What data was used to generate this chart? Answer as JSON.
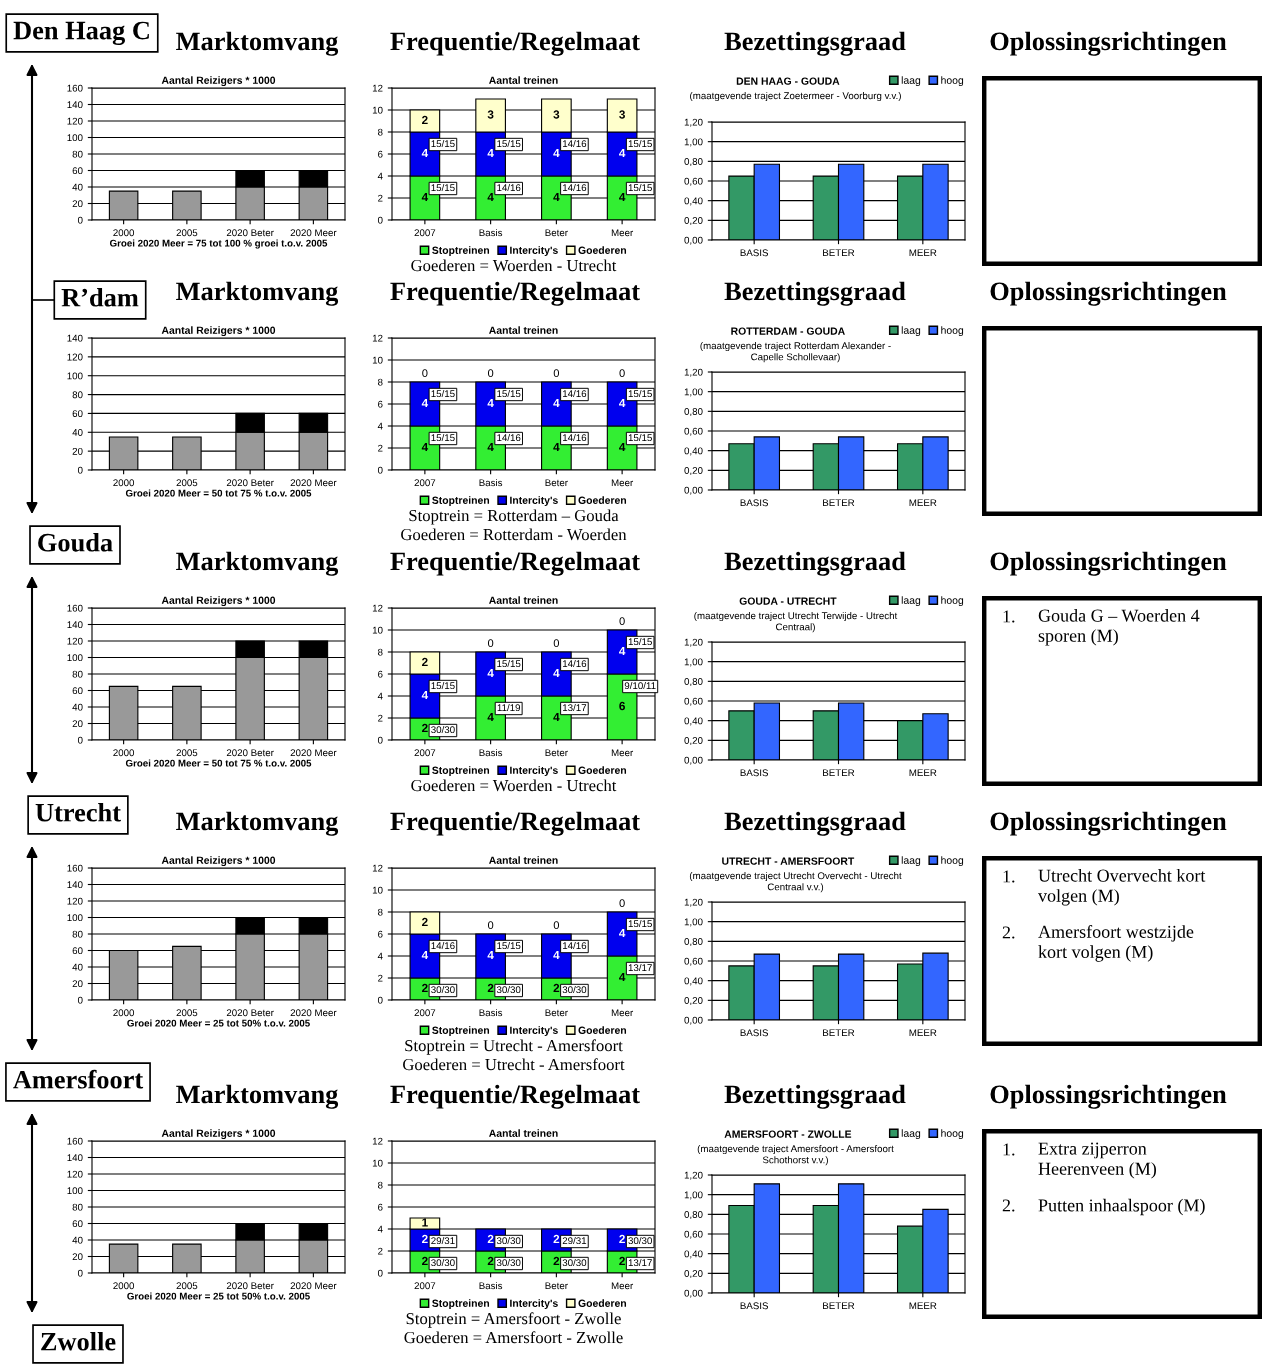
{
  "chart_data": [
    {
      "type": "other",
      "annotations": [
        "Den Haag C",
        "R’dam",
        "Gouda",
        "Utrecht",
        "Amersfoort",
        "Zwolle"
      ]
    },
    {
      "type": "bar",
      "title": "Marktomvang",
      "subtitle": "Aantal Reizigers * 1000",
      "xlabel": "Groei 2020 Meer = 75 tot 100 % groei t.o.v. 2005",
      "stacked": true,
      "categories": [
        "2000",
        "2005",
        "2020 Beter",
        "2020 Meer"
      ],
      "series": [
        {
          "color": "#999999",
          "values": [
            35,
            35,
            40,
            40
          ]
        },
        {
          "color": "#000000",
          "values": [
            null,
            null,
            20,
            20
          ]
        }
      ],
      "ylim": [
        0,
        160
      ],
      "yticks": [
        0,
        20,
        40,
        60,
        80,
        100,
        120,
        140,
        160
      ],
      "grid": "y"
    },
    {
      "type": "bar",
      "title": "Frequentie/Regelmaat",
      "subtitle": "Aantal treinen",
      "stacked": true,
      "categories": [
        "2007",
        "Basis",
        "Beter",
        "Meer"
      ],
      "series": [
        {
          "name": "Stoptreinen",
          "color": "#33ee33",
          "values": [
            4,
            4,
            4,
            4
          ],
          "value_labels": [
            "4",
            "4",
            "4",
            "4"
          ]
        },
        {
          "name": "Intercity's",
          "color": "#0000ee",
          "values": [
            4,
            4,
            4,
            4
          ],
          "value_labels": [
            "4",
            "4",
            "4",
            "4"
          ]
        },
        {
          "name": "Goederen",
          "color": "#ffffcc",
          "values": [
            2,
            3,
            3,
            3
          ],
          "value_labels": [
            "2",
            "3",
            "3",
            "3"
          ]
        }
      ],
      "ylim": [
        0,
        12
      ],
      "yticks": [
        0,
        2,
        4,
        6,
        8,
        10,
        12
      ],
      "grid": "y",
      "legend": "bottom",
      "annotations": [
        {
          "text": "15/15",
          "x": "2007",
          "y": 8
        },
        {
          "text": "15/15",
          "x": "Basis",
          "y": 8
        },
        {
          "text": "14/16",
          "x": "Beter",
          "y": 8
        },
        {
          "text": "15/15",
          "x": "Meer",
          "y": 8
        },
        {
          "text": "15/15",
          "x": "2007",
          "y": 4
        },
        {
          "text": "14/16",
          "x": "Basis",
          "y": 4
        },
        {
          "text": "14/16",
          "x": "Beter",
          "y": 4
        },
        {
          "text": "15/15",
          "x": "Meer",
          "y": 4
        },
        "Goederen = Woerden - Utrecht"
      ]
    },
    {
      "type": "bar",
      "title": "Bezettingsgraad",
      "subtitle": "DEN HAAG - GOUDA",
      "categories": [
        "BASIS",
        "BETER",
        "MEER"
      ],
      "series": [
        {
          "name": "laag",
          "color": "#339966",
          "values": [
            0.65,
            0.65,
            0.65
          ]
        },
        {
          "name": "hoog",
          "color": "#3366ff",
          "values": [
            0.77,
            0.77,
            0.77
          ]
        }
      ],
      "ylim": [
        0,
        1.2
      ],
      "yticks": [
        {
          "value": 0,
          "label": "0,00"
        },
        {
          "value": 0.2,
          "label": "0,20"
        },
        {
          "value": 0.4,
          "label": "0,40"
        },
        {
          "value": 0.6,
          "label": "0,60"
        },
        {
          "value": 0.8,
          "label": "0,80"
        },
        {
          "value": 1.0,
          "label": "1,00"
        },
        {
          "value": 1.2,
          "label": "1,20"
        }
      ],
      "grid": "y",
      "legend": "top right",
      "annotations": [
        "(maatgevende traject Zoetermeer - Voorburg v.v.)"
      ]
    },
    {
      "type": "other",
      "title": "Oplossingsrichtingen"
    },
    {
      "type": "bar",
      "title": "Marktomvang",
      "subtitle": "Aantal Reizigers * 1000",
      "xlabel": "Groei 2020 Meer = 50 tot 75 % t.o.v. 2005",
      "stacked": true,
      "categories": [
        "2000",
        "2005",
        "2020 Beter",
        "2020 Meer"
      ],
      "series": [
        {
          "color": "#999999",
          "values": [
            35,
            35,
            40,
            40
          ]
        },
        {
          "color": "#000000",
          "values": [
            null,
            null,
            20,
            20
          ]
        }
      ],
      "ylim": [
        0,
        140
      ],
      "yticks": [
        0,
        20,
        40,
        60,
        80,
        100,
        120,
        140
      ],
      "grid": "y"
    },
    {
      "type": "bar",
      "title": "Frequentie/Regelmaat",
      "subtitle": "Aantal treinen",
      "stacked": true,
      "categories": [
        "2007",
        "Basis",
        "Beter",
        "Meer"
      ],
      "series": [
        {
          "name": "Stoptreinen",
          "color": "#33ee33",
          "values": [
            4,
            4,
            4,
            4
          ],
          "value_labels": [
            "4",
            "4",
            "4",
            "4"
          ]
        },
        {
          "name": "Intercity's",
          "color": "#0000ee",
          "values": [
            4,
            4,
            4,
            4
          ],
          "value_labels": [
            "4",
            "4",
            "4",
            "4"
          ]
        },
        {
          "name": "Goederen",
          "color": "#ffffcc",
          "values": [
            0,
            0,
            0,
            0
          ],
          "value_labels": [
            "0",
            "0",
            "0",
            "0"
          ]
        }
      ],
      "ylim": [
        0,
        12
      ],
      "yticks": [
        0,
        2,
        4,
        6,
        8,
        10,
        12
      ],
      "grid": "y",
      "legend": "bottom",
      "annotations": [
        {
          "text": "15/15",
          "x": "2007",
          "y": 8
        },
        {
          "text": "15/15",
          "x": "Basis",
          "y": 8
        },
        {
          "text": "14/16",
          "x": "Beter",
          "y": 8
        },
        {
          "text": "15/15",
          "x": "Meer",
          "y": 8
        },
        {
          "text": "15/15",
          "x": "2007",
          "y": 4
        },
        {
          "text": "14/16",
          "x": "Basis",
          "y": 4
        },
        {
          "text": "14/16",
          "x": "Beter",
          "y": 4
        },
        {
          "text": "15/15",
          "x": "Meer",
          "y": 4
        },
        "Stoptrein = Rotterdam – Gouda",
        "Goederen = Rotterdam - Woerden"
      ]
    },
    {
      "type": "bar",
      "title": "Bezettingsgraad",
      "subtitle": "ROTTERDAM - GOUDA",
      "categories": [
        "BASIS",
        "BETER",
        "MEER"
      ],
      "series": [
        {
          "name": "laag",
          "color": "#339966",
          "values": [
            0.47,
            0.47,
            0.47
          ]
        },
        {
          "name": "hoog",
          "color": "#3366ff",
          "values": [
            0.54,
            0.54,
            0.54
          ]
        }
      ],
      "ylim": [
        0,
        1.2
      ],
      "yticks": [
        {
          "value": 0,
          "label": "0,00"
        },
        {
          "value": 0.2,
          "label": "0,20"
        },
        {
          "value": 0.4,
          "label": "0,40"
        },
        {
          "value": 0.6,
          "label": "0,60"
        },
        {
          "value": 0.8,
          "label": "0,80"
        },
        {
          "value": 1.0,
          "label": "1,00"
        },
        {
          "value": 1.2,
          "label": "1,20"
        }
      ],
      "grid": "y",
      "legend": "top right",
      "annotations": [
        "(maatgevende traject Rotterdam Alexander - Capelle Schollevaar)"
      ]
    },
    {
      "type": "other",
      "title": "Oplossingsrichtingen"
    },
    {
      "type": "bar",
      "title": "Marktomvang",
      "subtitle": "Aantal Reizigers * 1000",
      "xlabel": "Groei 2020 Meer = 50 tot 75 % t.o.v. 2005",
      "stacked": true,
      "categories": [
        "2000",
        "2005",
        "2020 Beter",
        "2020 Meer"
      ],
      "series": [
        {
          "color": "#999999",
          "values": [
            65,
            65,
            100,
            100
          ]
        },
        {
          "color": "#000000",
          "values": [
            null,
            null,
            20,
            20
          ]
        }
      ],
      "ylim": [
        0,
        160
      ],
      "yticks": [
        0,
        20,
        40,
        60,
        80,
        100,
        120,
        140,
        160
      ],
      "grid": "y"
    },
    {
      "type": "bar",
      "title": "Frequentie/Regelmaat",
      "subtitle": "Aantal treinen",
      "stacked": true,
      "categories": [
        "2007",
        "Basis",
        "Beter",
        "Meer"
      ],
      "series": [
        {
          "name": "Stoptreinen",
          "color": "#33ee33",
          "values": [
            2,
            4,
            4,
            6
          ],
          "value_labels": [
            "2",
            "4",
            "4",
            "6"
          ]
        },
        {
          "name": "Intercity's",
          "color": "#0000ee",
          "values": [
            4,
            4,
            4,
            4
          ],
          "value_labels": [
            "4",
            "4",
            "4",
            "4"
          ]
        },
        {
          "name": "Goederen",
          "color": "#ffffcc",
          "values": [
            2,
            0,
            0,
            0
          ],
          "value_labels": [
            "2",
            "0",
            "0",
            "0"
          ]
        }
      ],
      "ylim": [
        0,
        12
      ],
      "yticks": [
        0,
        2,
        4,
        6,
        8,
        10,
        12
      ],
      "grid": "y",
      "legend": "bottom",
      "annotations": [
        {
          "text": "15/15",
          "x": "2007",
          "y": 6
        },
        {
          "text": "15/15",
          "x": "Basis",
          "y": 8
        },
        {
          "text": "14/16",
          "x": "Beter",
          "y": 8
        },
        {
          "text": "15/15",
          "x": "Meer",
          "y": 10
        },
        {
          "text": "30/30",
          "x": "2007",
          "y": 2
        },
        {
          "text": "11/19",
          "x": "Basis",
          "y": 4
        },
        {
          "text": "13/17",
          "x": "Beter",
          "y": 4
        },
        {
          "text": "9/10/11",
          "x": "Meer",
          "y": 6
        },
        "Goederen = Woerden - Utrecht"
      ]
    },
    {
      "type": "bar",
      "title": "Bezettingsgraad",
      "subtitle": "GOUDA - UTRECHT",
      "categories": [
        "BASIS",
        "BETER",
        "MEER"
      ],
      "series": [
        {
          "name": "laag",
          "color": "#339966",
          "values": [
            0.5,
            0.5,
            0.4
          ]
        },
        {
          "name": "hoog",
          "color": "#3366ff",
          "values": [
            0.58,
            0.58,
            0.47
          ]
        }
      ],
      "ylim": [
        0,
        1.2
      ],
      "yticks": [
        {
          "value": 0,
          "label": "0,00"
        },
        {
          "value": 0.2,
          "label": "0,20"
        },
        {
          "value": 0.4,
          "label": "0,40"
        },
        {
          "value": 0.6,
          "label": "0,60"
        },
        {
          "value": 0.8,
          "label": "0,80"
        },
        {
          "value": 1.0,
          "label": "1,00"
        },
        {
          "value": 1.2,
          "label": "1,20"
        }
      ],
      "grid": "y",
      "legend": "top right",
      "annotations": [
        "(maatgevende traject Utrecht Terwijde - Utrecht Centraal)"
      ]
    },
    {
      "type": "other",
      "title": "Oplossingsrichtingen",
      "annotations": [
        "1. Gouda G – Woerden 4 sporen (M)"
      ]
    },
    {
      "type": "bar",
      "title": "Marktomvang",
      "subtitle": "Aantal Reizigers * 1000",
      "xlabel": "Groei 2020 Meer = 25 tot 50% t.o.v. 2005",
      "stacked": true,
      "categories": [
        "2000",
        "2005",
        "2020 Beter",
        "2020 Meer"
      ],
      "series": [
        {
          "color": "#999999",
          "values": [
            60,
            65,
            80,
            80
          ]
        },
        {
          "color": "#000000",
          "values": [
            null,
            null,
            20,
            20
          ]
        }
      ],
      "ylim": [
        0,
        160
      ],
      "yticks": [
        0,
        20,
        40,
        60,
        80,
        100,
        120,
        140,
        160
      ],
      "grid": "y"
    },
    {
      "type": "bar",
      "title": "Frequentie/Regelmaat",
      "subtitle": "Aantal treinen",
      "stacked": true,
      "categories": [
        "2007",
        "Basis",
        "Beter",
        "Meer"
      ],
      "series": [
        {
          "name": "Stoptreinen",
          "color": "#33ee33",
          "values": [
            2,
            2,
            2,
            4
          ],
          "value_labels": [
            "2",
            "2",
            "2",
            "4"
          ]
        },
        {
          "name": "Intercity's",
          "color": "#0000ee",
          "values": [
            4,
            4,
            4,
            4
          ],
          "value_labels": [
            "4",
            "4",
            "4",
            "4"
          ]
        },
        {
          "name": "Goederen",
          "color": "#ffffcc",
          "values": [
            2,
            0,
            0,
            0
          ],
          "value_labels": [
            "2",
            "0",
            "0",
            "0"
          ]
        }
      ],
      "ylim": [
        0,
        12
      ],
      "yticks": [
        0,
        2,
        4,
        6,
        8,
        10,
        12
      ],
      "grid": "y",
      "legend": "bottom",
      "annotations": [
        {
          "text": "14/16",
          "x": "2007",
          "y": 6
        },
        {
          "text": "15/15",
          "x": "Basis",
          "y": 6
        },
        {
          "text": "14/16",
          "x": "Beter",
          "y": 6
        },
        {
          "text": "15/15",
          "x": "Meer",
          "y": 8
        },
        {
          "text": "30/30",
          "x": "2007",
          "y": 2
        },
        {
          "text": "30/30",
          "x": "Basis",
          "y": 2
        },
        {
          "text": "30/30",
          "x": "Beter",
          "y": 2
        },
        {
          "text": "13/17",
          "x": "Meer",
          "y": 4
        },
        "Stoptrein = Utrecht - Amersfoort",
        "Goederen = Utrecht - Amersfoort"
      ]
    },
    {
      "type": "bar",
      "title": "Bezettingsgraad",
      "subtitle": "UTRECHT - AMERSFOORT",
      "categories": [
        "BASIS",
        "BETER",
        "MEER"
      ],
      "series": [
        {
          "name": "laag",
          "color": "#339966",
          "values": [
            0.55,
            0.55,
            0.57
          ]
        },
        {
          "name": "hoog",
          "color": "#3366ff",
          "values": [
            0.67,
            0.67,
            0.68
          ]
        }
      ],
      "ylim": [
        0,
        1.2
      ],
      "yticks": [
        {
          "value": 0,
          "label": "0,00"
        },
        {
          "value": 0.2,
          "label": "0,20"
        },
        {
          "value": 0.4,
          "label": "0,40"
        },
        {
          "value": 0.6,
          "label": "0,60"
        },
        {
          "value": 0.8,
          "label": "0,80"
        },
        {
          "value": 1.0,
          "label": "1,00"
        },
        {
          "value": 1.2,
          "label": "1,20"
        }
      ],
      "grid": "y",
      "legend": "top right",
      "annotations": [
        "(maatgevende traject Utrecht Overvecht - Utrecht Centraal v.v.)"
      ]
    },
    {
      "type": "other",
      "title": "Oplossingsrichtingen",
      "annotations": [
        "1. Utrecht Overvecht kort volgen (M)",
        "2. Amersfoort westzijde kort volgen (M)"
      ]
    },
    {
      "type": "bar",
      "title": "Marktomvang",
      "subtitle": "Aantal Reizigers * 1000",
      "xlabel": "Groei 2020 Meer = 25 tot 50% t.o.v. 2005",
      "stacked": true,
      "categories": [
        "2000",
        "2005",
        "2020 Beter",
        "2020 Meer"
      ],
      "series": [
        {
          "color": "#999999",
          "values": [
            35,
            35,
            40,
            40
          ]
        },
        {
          "color": "#000000",
          "values": [
            null,
            null,
            20,
            20
          ]
        }
      ],
      "ylim": [
        0,
        160
      ],
      "yticks": [
        0,
        20,
        40,
        60,
        80,
        100,
        120,
        140,
        160
      ],
      "grid": "y"
    },
    {
      "type": "bar",
      "title": "Frequentie/Regelmaat",
      "subtitle": "Aantal treinen",
      "stacked": true,
      "categories": [
        "2007",
        "Basis",
        "Beter",
        "Meer"
      ],
      "series": [
        {
          "name": "Stoptreinen",
          "color": "#33ee33",
          "values": [
            2,
            2,
            2,
            2
          ],
          "value_labels": [
            "2",
            "2",
            "2",
            "2"
          ]
        },
        {
          "name": "Intercity's",
          "color": "#0000ee",
          "values": [
            2,
            2,
            2,
            2
          ],
          "value_labels": [
            "2",
            "2",
            "2",
            "2"
          ]
        },
        {
          "name": "Goederen",
          "color": "#ffffcc",
          "values": [
            1,
            0,
            0,
            0
          ],
          "value_labels": [
            "1",
            null,
            null,
            null
          ]
        }
      ],
      "ylim": [
        0,
        12
      ],
      "yticks": [
        0,
        2,
        4,
        6,
        8,
        10,
        12
      ],
      "grid": "y",
      "legend": "bottom",
      "annotations": [
        {
          "text": "29/31",
          "x": "2007",
          "y": 4
        },
        {
          "text": "30/30",
          "x": "Basis",
          "y": 4
        },
        {
          "text": "29/31",
          "x": "Beter",
          "y": 4
        },
        {
          "text": "30/30",
          "x": "Meer",
          "y": 4
        },
        {
          "text": "30/30",
          "x": "2007",
          "y": 2
        },
        {
          "text": "30/30",
          "x": "Basis",
          "y": 2
        },
        {
          "text": "30/30",
          "x": "Beter",
          "y": 2
        },
        {
          "text": "13/17",
          "x": "Meer",
          "y": 2
        },
        "Stoptrein = Amersfoort - Zwolle",
        "Goederen = Amersfoort - Zwolle"
      ]
    },
    {
      "type": "bar",
      "title": "Bezettingsgraad",
      "subtitle": "AMERSFOORT - ZWOLLE",
      "categories": [
        "BASIS",
        "BETER",
        "MEER"
      ],
      "series": [
        {
          "name": "laag",
          "color": "#339966",
          "values": [
            0.89,
            0.89,
            0.68
          ]
        },
        {
          "name": "hoog",
          "color": "#3366ff",
          "values": [
            1.11,
            1.11,
            0.85
          ]
        }
      ],
      "ylim": [
        0,
        1.2
      ],
      "yticks": [
        {
          "value": 0,
          "label": "0,00"
        },
        {
          "value": 0.2,
          "label": "0,20"
        },
        {
          "value": 0.4,
          "label": "0,40"
        },
        {
          "value": 0.6,
          "label": "0,60"
        },
        {
          "value": 0.8,
          "label": "0,80"
        },
        {
          "value": 1.0,
          "label": "1,00"
        },
        {
          "value": 1.2,
          "label": "1,20"
        }
      ],
      "grid": "y",
      "legend": "top right",
      "annotations": [
        "(maatgevende traject Amersfoort - Amersfoort Schothorst v.v.)"
      ]
    },
    {
      "type": "other",
      "title": "Oplossingsrichtingen",
      "annotations": [
        "1. Extra zijperron Heerenveen (M)",
        "2. Putten inhaalspoor (M)"
      ]
    }
  ]
}
